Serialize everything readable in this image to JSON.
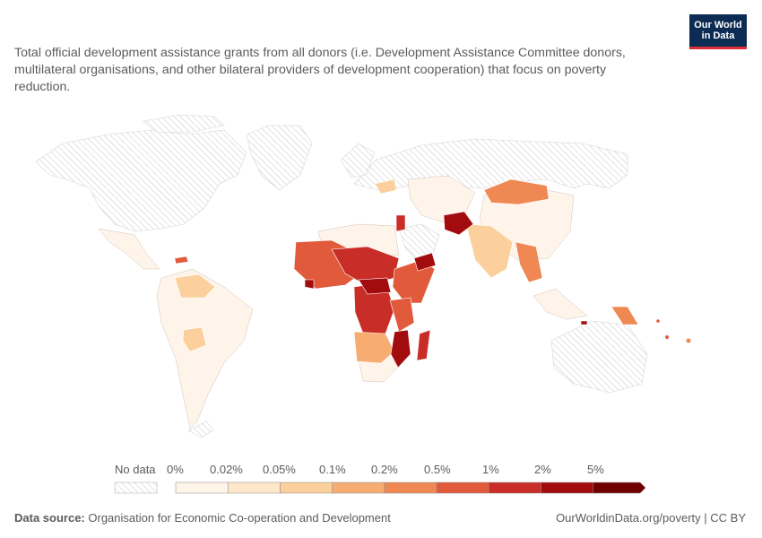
{
  "subtitle": "Total official development assistance grants from all donors (i.e. Development Assistance Committee donors, multilateral organisations, and other bilateral providers of development cooperation) that focus on poverty reduction.",
  "logo": {
    "line1": "Our World",
    "line2": "in Data"
  },
  "legend": {
    "no_data_label": "No data",
    "bins": [
      "0%",
      "0.02%",
      "0.05%",
      "0.1%",
      "0.2%",
      "0.5%",
      "1%",
      "2%",
      "5%"
    ],
    "colors": [
      "#fff4ea",
      "#fde6c9",
      "#fbd09c",
      "#f7ad72",
      "#ef8853",
      "#e15a3c",
      "#c92d27",
      "#a30c0f",
      "#6e0000"
    ]
  },
  "footer": {
    "source_label": "Data source:",
    "source": "Organisation for Economic Co-operation and Development",
    "url": "OurWorldinData.org/poverty | CC BY"
  }
}
